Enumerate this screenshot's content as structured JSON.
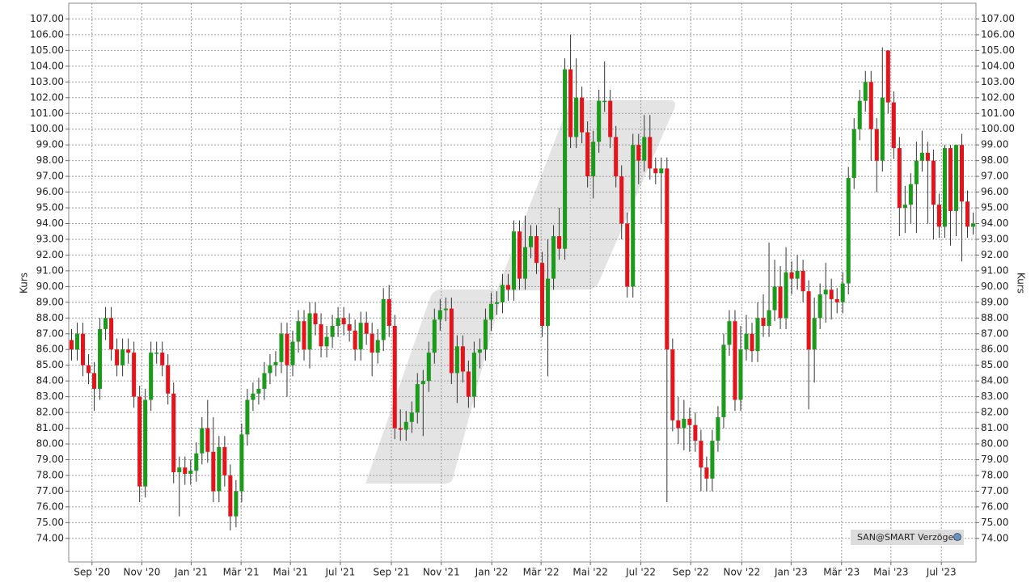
{
  "chart_data": {
    "type": "candlestick",
    "y_label": "Kurs",
    "y2_label": "Kurs",
    "source_label": "SAN@SMART Verzögert",
    "up_color": "#1c9a1c",
    "down_color": "#e3141c",
    "grid": true,
    "ylim": [
      72.5,
      108.0
    ],
    "xlim": [
      -0.5,
      159.5
    ],
    "yticks": [
      {
        "value": 74,
        "label": "74.00"
      },
      {
        "value": 75,
        "label": "75.00"
      },
      {
        "value": 76,
        "label": "76.00"
      },
      {
        "value": 77,
        "label": "77.00"
      },
      {
        "value": 78,
        "label": "78.00"
      },
      {
        "value": 79,
        "label": "79.00"
      },
      {
        "value": 80,
        "label": "80.00"
      },
      {
        "value": 81,
        "label": "81.00"
      },
      {
        "value": 82,
        "label": "82.00"
      },
      {
        "value": 83,
        "label": "83.00"
      },
      {
        "value": 84,
        "label": "84.00"
      },
      {
        "value": 85,
        "label": "85.00"
      },
      {
        "value": 86,
        "label": "86.00"
      },
      {
        "value": 87,
        "label": "87.00"
      },
      {
        "value": 88,
        "label": "88.00"
      },
      {
        "value": 89,
        "label": "89.00"
      },
      {
        "value": 90,
        "label": "90.00"
      },
      {
        "value": 91,
        "label": "91.00"
      },
      {
        "value": 92,
        "label": "92.00"
      },
      {
        "value": 93,
        "label": "93.00"
      },
      {
        "value": 94,
        "label": "94.00"
      },
      {
        "value": 95,
        "label": "95.00"
      },
      {
        "value": 96,
        "label": "96.00"
      },
      {
        "value": 97,
        "label": "97.00"
      },
      {
        "value": 98,
        "label": "98.00"
      },
      {
        "value": 99,
        "label": "99.00"
      },
      {
        "value": 100,
        "label": "100.00"
      },
      {
        "value": 101,
        "label": "101.00"
      },
      {
        "value": 102,
        "label": "102.00"
      },
      {
        "value": 103,
        "label": "103.00"
      },
      {
        "value": 104,
        "label": "104.00"
      },
      {
        "value": 105,
        "label": "105.00"
      },
      {
        "value": 106,
        "label": "106.00"
      },
      {
        "value": 107,
        "label": "107.00"
      }
    ],
    "xticks": [
      {
        "value": 3.6,
        "label": "Sep '20"
      },
      {
        "value": 12.4,
        "label": "Nov '20"
      },
      {
        "value": 21.1,
        "label": "Jan '21"
      },
      {
        "value": 29.9,
        "label": "Mär '21"
      },
      {
        "value": 38.6,
        "label": "Mai '21"
      },
      {
        "value": 47.4,
        "label": "Jul '21"
      },
      {
        "value": 56.4,
        "label": "Sep '21"
      },
      {
        "value": 65.2,
        "label": "Nov '21"
      },
      {
        "value": 74.1,
        "label": "Jan '22"
      },
      {
        "value": 82.8,
        "label": "Mär '22"
      },
      {
        "value": 91.5,
        "label": "Mai '22"
      },
      {
        "value": 100.4,
        "label": "Jul '22"
      },
      {
        "value": 109.2,
        "label": "Sep '22"
      },
      {
        "value": 118.2,
        "label": "Nov '22"
      },
      {
        "value": 126.9,
        "label": "Jan '23"
      },
      {
        "value": 135.8,
        "label": "Mär '23"
      },
      {
        "value": 144.5,
        "label": "Mai '23"
      },
      {
        "value": 153.4,
        "label": "Jul '23"
      }
    ],
    "open": [
      86.6,
      86.0,
      87.0,
      85.0,
      84.5,
      83.5,
      87.3,
      88.0,
      86.0,
      85.0,
      86.0,
      85.8,
      83.0,
      77.3,
      82.8,
      85.8,
      85.8,
      85.0,
      83.2,
      78.2,
      78.5,
      78.1,
      78.3,
      79.4,
      81.0,
      79.5,
      77.0,
      79.8,
      78.0,
      75.4,
      77.0,
      80.6,
      82.8,
      83.2,
      83.5,
      84.5,
      85.0,
      85.2,
      87.0,
      85.0,
      86.5,
      87.8,
      86.0,
      88.3,
      87.6,
      86.2,
      86.8,
      87.5,
      88.0,
      87.6,
      87.2,
      86.0,
      87.7,
      87.0,
      85.8,
      86.6,
      89.2,
      87.5,
      81.0,
      80.9,
      81.4,
      82.0,
      83.8,
      84.0,
      85.8,
      87.9,
      88.5,
      88.6,
      84.5,
      86.2,
      84.6,
      83.0,
      85.8,
      86.0,
      87.9,
      88.9,
      89.0,
      90.1,
      89.8,
      93.5,
      90.5,
      92.5,
      93.2,
      91.5,
      87.5,
      90.5,
      93.2,
      92.4,
      103.8,
      99.5,
      102.0,
      99.8,
      97.0,
      99.2,
      101.8,
      101.8,
      99.5,
      97.0,
      94.0,
      90.0,
      99.0,
      98.0,
      99.5,
      97.5,
      97.2,
      97.5,
      86.0,
      81.5,
      81.0,
      81.6,
      81.2,
      80.2,
      78.5,
      77.8,
      80.2,
      81.7,
      86.3,
      87.8,
      82.8,
      86.0,
      87.0,
      85.9,
      88.0,
      87.5,
      88.5,
      90.0,
      88.0,
      90.9,
      90.5,
      91.0,
      89.7,
      86.0,
      88.0,
      89.5,
      89.8,
      89.2,
      89.0,
      90.2,
      96.9,
      100.0,
      101.8,
      103.0,
      100.0,
      98.0,
      105.0,
      101.7,
      98.8,
      95.0,
      95.2,
      96.5,
      98.0,
      98.5,
      98.0,
      95.2,
      93.8,
      98.8,
      94.8,
      99.0,
      95.4,
      93.8
    ],
    "high": [
      87.3,
      87.7,
      87.7,
      85.7,
      85.2,
      88.0,
      88.7,
      88.7,
      86.7,
      86.7,
      86.7,
      86.5,
      83.7,
      83.5,
      86.5,
      86.5,
      86.5,
      85.7,
      83.9,
      79.2,
      79.2,
      79.0,
      80.1,
      81.7,
      82.8,
      81.7,
      80.5,
      80.5,
      78.7,
      77.7,
      81.3,
      83.5,
      83.9,
      84.2,
      85.2,
      85.7,
      85.9,
      87.7,
      87.7,
      87.2,
      88.5,
      88.5,
      89.0,
      89.0,
      88.3,
      87.5,
      88.2,
      88.7,
      88.7,
      88.3,
      87.9,
      88.4,
      88.4,
      87.7,
      87.3,
      89.9,
      90.1,
      88.2,
      82.2,
      82.1,
      82.7,
      84.5,
      84.7,
      86.5,
      88.6,
      89.2,
      89.3,
      89.3,
      86.9,
      86.9,
      85.3,
      86.5,
      86.7,
      88.6,
      89.6,
      89.7,
      90.8,
      90.8,
      94.2,
      94.2,
      94.5,
      93.9,
      93.9,
      92.2,
      93.0,
      93.9,
      95.0,
      104.5,
      106.0,
      104.5,
      102.7,
      100.5,
      99.9,
      102.5,
      104.3,
      102.5,
      100.2,
      97.7,
      94.7,
      99.7,
      99.7,
      100.9,
      100.9,
      98.2,
      98.2,
      98.2,
      86.7,
      83.0,
      82.8,
      82.3,
      82.0,
      80.9,
      79.2,
      80.9,
      82.4,
      87.0,
      88.5,
      88.5,
      87.5,
      88.2,
      87.7,
      89.0,
      89.5,
      92.8,
      91.7,
      91.3,
      92.5,
      91.6,
      92.0,
      91.7,
      90.4,
      89.3,
      90.2,
      91.5,
      90.5,
      89.9,
      90.9,
      97.6,
      100.7,
      102.5,
      103.7,
      103.7,
      100.7,
      105.2,
      105.0,
      102.4,
      99.5,
      96.4,
      97.2,
      99.2,
      99.9,
      99.2,
      98.7,
      95.9,
      99.0,
      99.0,
      99.0,
      99.7,
      96.1,
      94.7
    ],
    "low": [
      85.3,
      85.3,
      84.3,
      83.8,
      82.1,
      82.8,
      86.6,
      85.3,
      84.3,
      84.3,
      85.1,
      82.3,
      76.3,
      76.6,
      82.1,
      85.1,
      84.3,
      82.5,
      77.5,
      75.4,
      77.4,
      77.4,
      77.6,
      78.7,
      78.8,
      76.3,
      76.3,
      77.3,
      74.5,
      74.7,
      76.3,
      79.9,
      82.1,
      82.5,
      82.8,
      83.8,
      84.3,
      84.5,
      83.0,
      84.3,
      85.8,
      85.3,
      84.8,
      86.9,
      85.5,
      85.5,
      86.1,
      86.8,
      86.9,
      86.5,
      85.3,
      85.3,
      86.3,
      84.3,
      85.1,
      85.9,
      86.8,
      80.3,
      80.2,
      80.2,
      80.7,
      81.3,
      80.5,
      83.3,
      85.1,
      87.2,
      87.8,
      83.8,
      82.6,
      83.9,
      82.3,
      82.3,
      84.8,
      85.3,
      87.2,
      88.2,
      88.3,
      89.1,
      89.1,
      89.8,
      89.8,
      91.8,
      90.8,
      86.8,
      84.3,
      89.8,
      91.7,
      91.7,
      98.8,
      98.8,
      99.1,
      96.3,
      95.6,
      98.5,
      101.1,
      98.8,
      96.3,
      93.0,
      89.3,
      89.3,
      96.5,
      97.3,
      96.8,
      96.5,
      94.0,
      76.3,
      80.8,
      80.0,
      79.6,
      79.5,
      79.5,
      77.0,
      77.0,
      77.0,
      79.5,
      81.0,
      85.6,
      82.1,
      82.1,
      85.3,
      85.2,
      85.2,
      86.8,
      86.8,
      87.8,
      87.3,
      87.3,
      89.5,
      89.8,
      89.0,
      82.2,
      83.9,
      87.3,
      87.7,
      87.9,
      88.3,
      88.3,
      89.5,
      96.2,
      99.3,
      101.1,
      98.0,
      96.0,
      97.3,
      101.0,
      98.1,
      93.2,
      93.4,
      94.0,
      93.4,
      97.3,
      94.0,
      93.0,
      93.1,
      93.1,
      92.6,
      93.2,
      91.6,
      93.1,
      93.3
    ],
    "close": [
      86.0,
      87.0,
      85.0,
      84.5,
      83.5,
      87.3,
      88.0,
      86.0,
      85.0,
      86.0,
      85.8,
      83.0,
      77.3,
      82.8,
      85.8,
      85.8,
      85.0,
      83.2,
      78.2,
      78.5,
      78.1,
      78.3,
      79.4,
      81.0,
      79.5,
      77.0,
      79.8,
      78.0,
      75.4,
      77.0,
      80.6,
      82.8,
      83.2,
      83.5,
      84.5,
      85.0,
      85.2,
      87.0,
      85.0,
      86.5,
      87.8,
      86.0,
      88.3,
      87.6,
      86.2,
      86.8,
      87.5,
      88.0,
      87.6,
      87.2,
      86.0,
      87.7,
      87.0,
      85.8,
      86.6,
      89.2,
      87.5,
      81.0,
      80.9,
      81.4,
      82.0,
      83.8,
      84.0,
      85.8,
      87.9,
      88.5,
      88.6,
      84.5,
      86.2,
      84.6,
      83.0,
      85.8,
      86.0,
      87.9,
      88.9,
      89.0,
      90.1,
      89.8,
      93.5,
      90.5,
      92.5,
      93.2,
      91.5,
      87.5,
      90.5,
      93.2,
      92.4,
      103.8,
      99.5,
      102.0,
      99.8,
      97.0,
      99.2,
      101.8,
      101.8,
      99.5,
      97.0,
      94.0,
      90.0,
      99.0,
      98.0,
      99.5,
      97.5,
      97.2,
      97.5,
      86.0,
      81.5,
      81.0,
      81.6,
      81.2,
      80.2,
      78.5,
      77.8,
      80.2,
      81.7,
      86.3,
      87.8,
      82.8,
      86.0,
      87.0,
      85.9,
      88.0,
      87.5,
      88.5,
      90.0,
      88.0,
      90.9,
      90.5,
      91.0,
      89.7,
      86.0,
      88.0,
      89.5,
      89.8,
      89.2,
      89.0,
      90.2,
      96.9,
      100.0,
      101.8,
      103.0,
      100.0,
      98.0,
      102.0,
      101.7,
      98.8,
      95.0,
      95.2,
      96.5,
      98.0,
      98.5,
      98.0,
      95.2,
      93.8,
      98.8,
      94.8,
      99.0,
      95.4,
      93.8,
      94.0
    ]
  }
}
